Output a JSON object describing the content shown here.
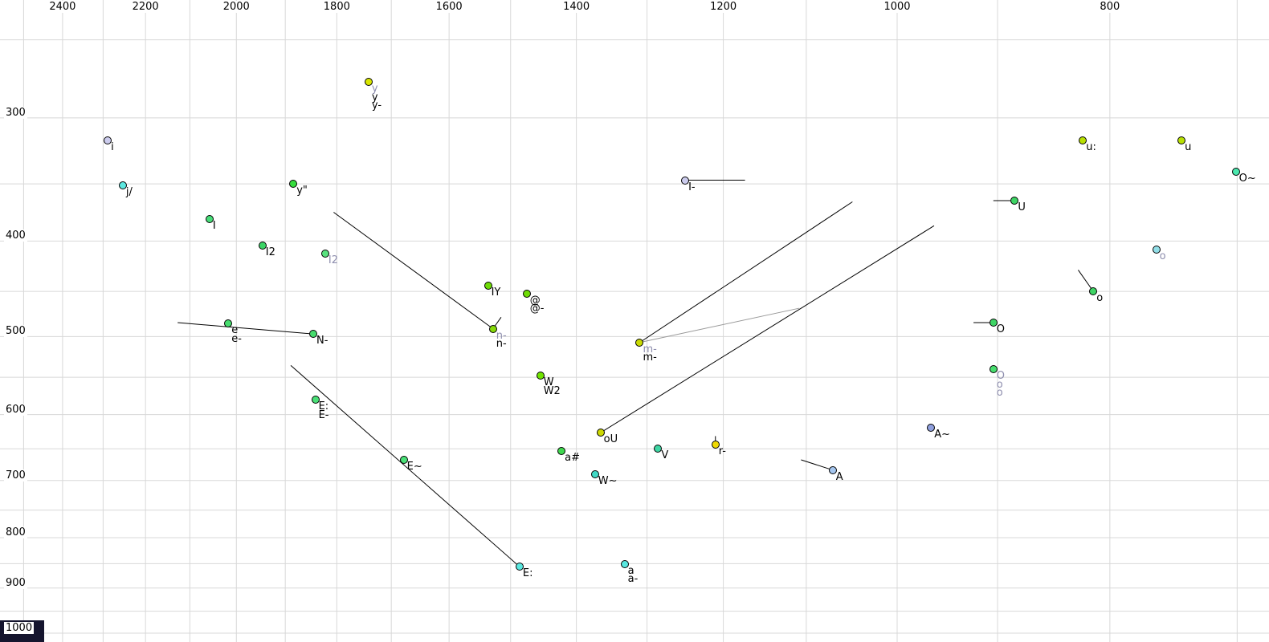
{
  "chart_data": {
    "type": "scatter",
    "title": "",
    "x_axis": {
      "tick_labels": [
        "2400",
        "2200",
        "2000",
        "1800",
        "1600",
        "1400",
        "1200",
        "1000",
        "800"
      ],
      "tick_values": [
        2400,
        2200,
        2000,
        1800,
        1600,
        1400,
        1200,
        1000,
        800
      ],
      "scale": "log",
      "direction": "reversed",
      "grid_step": 100,
      "grid_range": [
        700,
        2500
      ]
    },
    "y_axis": {
      "tick_labels": [
        "300",
        "400",
        "500",
        "600",
        "700",
        "800",
        "900",
        "1000"
      ],
      "tick_values": [
        300,
        400,
        500,
        600,
        700,
        800,
        900,
        1000
      ],
      "scale": "log",
      "direction": "down",
      "grid_step": 50,
      "grid_range": [
        250,
        1000
      ]
    },
    "grid_color": "#d8d8d8",
    "label_gray": "#8e8eae",
    "points": [
      {
        "id": "y",
        "f2": 1741,
        "f1": 276,
        "fill": "#d8e600",
        "labels": [
          {
            "text": "y",
            "color": "#8e8eae"
          },
          {
            "text": "y",
            "color": "#000000"
          },
          {
            "text": "y-",
            "color": "#000000"
          }
        ]
      },
      {
        "id": "i",
        "f2": 2289,
        "f1": 316,
        "fill": "#ccccee",
        "labels": [
          {
            "text": "i",
            "color": "#000000"
          }
        ]
      },
      {
        "id": "j-slash",
        "f2": 2253,
        "f1": 351,
        "fill": "#5ee8e0",
        "labels": [
          {
            "text": "j/",
            "color": "#000000"
          }
        ]
      },
      {
        "id": "I",
        "f2": 2057,
        "f1": 380,
        "fill": "#47dd78",
        "labels": [
          {
            "text": "I",
            "color": "#000000"
          }
        ]
      },
      {
        "id": "I2-a",
        "f2": 1946,
        "f1": 404,
        "fill": "#3bd465",
        "labels": [
          {
            "text": "I2",
            "color": "#000000"
          }
        ]
      },
      {
        "id": "I2-b",
        "f2": 1822,
        "f1": 412,
        "fill": "#58e27e",
        "labels": [
          {
            "text": "I2",
            "color": "#8e8eae"
          }
        ]
      },
      {
        "id": "y-umlaut",
        "f2": 1884,
        "f1": 350,
        "fill": "#36dd3d",
        "labels": [
          {
            "text": "y\"",
            "color": "#000000"
          }
        ]
      },
      {
        "id": "e",
        "f2": 2017,
        "f1": 485,
        "fill": "#47dd6e",
        "labels": [
          {
            "text": "e",
            "color": "#000000"
          },
          {
            "text": "e-",
            "color": "#000000"
          }
        ]
      },
      {
        "id": "N-",
        "f2": 1845,
        "f1": 497,
        "fill": "#47dd6e",
        "labels": [
          {
            "text": "N-",
            "color": "#000000"
          }
        ]
      },
      {
        "id": "IY",
        "f2": 1536,
        "f1": 444,
        "fill": "#6fdc06",
        "labels": [
          {
            "text": "IY",
            "color": "#000000"
          }
        ]
      },
      {
        "id": "at",
        "f2": 1475,
        "f1": 452,
        "fill": "#6fdc06",
        "labels": [
          {
            "text": "@",
            "color": "#000000"
          },
          {
            "text": "@-",
            "color": "#000000"
          }
        ]
      },
      {
        "id": "n-",
        "f2": 1528,
        "f1": 491,
        "fill": "#85d908",
        "labels": [
          {
            "text": "n-",
            "color": "#8e8eae"
          },
          {
            "text": "n-",
            "color": "#000000"
          }
        ]
      },
      {
        "id": "W",
        "f2": 1454,
        "f1": 548,
        "fill": "#70e400",
        "labels": [
          {
            "text": "W",
            "color": "#000000"
          },
          {
            "text": "W2",
            "color": "#000000"
          }
        ]
      },
      {
        "id": "E-colon",
        "f2": 1841,
        "f1": 580,
        "fill": "#4ae077",
        "labels": [
          {
            "text": "E:",
            "color": "#000000"
          },
          {
            "text": "E-",
            "color": "#000000"
          }
        ]
      },
      {
        "id": "E-nasal",
        "f2": 1678,
        "f1": 667,
        "fill": "#4ae077",
        "labels": [
          {
            "text": "E~",
            "color": "#000000"
          }
        ]
      },
      {
        "id": "E-colon-low",
        "f2": 1486,
        "f1": 856,
        "fill": "#5ae8e0",
        "labels": [
          {
            "text": "E:",
            "color": "#000000"
          }
        ]
      },
      {
        "id": "a",
        "f2": 1331,
        "f1": 851,
        "fill": "#5ae8e0",
        "labels": [
          {
            "text": "a",
            "color": "#000000"
          },
          {
            "text": "a-",
            "color": "#000000"
          }
        ]
      },
      {
        "id": "oU",
        "f2": 1365,
        "f1": 626,
        "fill": "#cdd802",
        "labels": [
          {
            "text": "oU",
            "color": "#000000"
          }
        ]
      },
      {
        "id": "a-hash",
        "f2": 1422,
        "f1": 653,
        "fill": "#3fd84f",
        "labels": [
          {
            "text": "a#",
            "color": "#000000"
          }
        ]
      },
      {
        "id": "W-nasal",
        "f2": 1373,
        "f1": 690,
        "fill": "#41d9c5",
        "labels": [
          {
            "text": "W~",
            "color": "#000000"
          }
        ]
      },
      {
        "id": "V",
        "f2": 1285,
        "f1": 650,
        "fill": "#3ed6a4",
        "labels": [
          {
            "text": "V",
            "color": "#000000"
          }
        ]
      },
      {
        "id": "r-",
        "f2": 1210,
        "f1": 644,
        "fill": "#efd902",
        "labels": [
          {
            "text": "r-",
            "color": "#000000"
          }
        ]
      },
      {
        "id": "m-",
        "f2": 1310,
        "f1": 507,
        "fill": "#c9da02",
        "labels": [
          {
            "text": "m-",
            "color": "#8e8eae"
          },
          {
            "text": "m-",
            "color": "#000000"
          }
        ]
      },
      {
        "id": "I-",
        "f2": 1249,
        "f1": 347,
        "fill": "#ccccee",
        "labels": [
          {
            "text": "I-",
            "color": "#000000"
          }
        ]
      },
      {
        "id": "A",
        "f2": 1070,
        "f1": 683,
        "fill": "#a5c6ef",
        "labels": [
          {
            "text": "A",
            "color": "#000000"
          }
        ]
      },
      {
        "id": "A-nasal",
        "f2": 965,
        "f1": 619,
        "fill": "#8f9fdd",
        "labels": [
          {
            "text": "A~",
            "color": "#000000"
          }
        ]
      },
      {
        "id": "u-colon",
        "f2": 823,
        "f1": 316,
        "fill": "#b8e002",
        "labels": [
          {
            "text": "u:",
            "color": "#000000"
          }
        ]
      },
      {
        "id": "u",
        "f2": 742,
        "f1": 316,
        "fill": "#b8e002",
        "labels": [
          {
            "text": "u",
            "color": "#000000"
          }
        ]
      },
      {
        "id": "O-nasal",
        "f2": 701,
        "f1": 340,
        "fill": "#4be8ae",
        "labels": [
          {
            "text": "O~",
            "color": "#000000"
          }
        ]
      },
      {
        "id": "U",
        "f2": 884,
        "f1": 364,
        "fill": "#3ed464",
        "labels": [
          {
            "text": "U",
            "color": "#000000"
          }
        ]
      },
      {
        "id": "o-gray",
        "f2": 762,
        "f1": 408,
        "fill": "#92dfe8",
        "labels": [
          {
            "text": "o",
            "color": "#8e8eae"
          }
        ]
      },
      {
        "id": "o",
        "f2": 814,
        "f1": 450,
        "fill": "#3ed464",
        "labels": [
          {
            "text": "o",
            "color": "#000000"
          }
        ]
      },
      {
        "id": "O",
        "f2": 904,
        "f1": 484,
        "fill": "#3ed464",
        "labels": [
          {
            "text": "O",
            "color": "#000000"
          }
        ]
      },
      {
        "id": "O-stack",
        "f2": 904,
        "f1": 540,
        "fill": "#47dd6e",
        "labels": [
          {
            "text": "O",
            "color": "#8e8eae"
          },
          {
            "text": "o",
            "color": "#8e8eae"
          },
          {
            "text": "o",
            "color": "#8e8eae"
          }
        ]
      }
    ],
    "lines": [
      {
        "f2a": 2127,
        "f1a": 484,
        "f2b": 1845,
        "f1b": 497,
        "color": "#000000"
      },
      {
        "f2a": 1806,
        "f1a": 374,
        "f2b": 1528,
        "f1b": 491,
        "color": "#000000"
      },
      {
        "f2a": 1889,
        "f1a": 535,
        "f2b": 1486,
        "f1b": 856,
        "color": "#000000"
      },
      {
        "f2a": 1310,
        "f1a": 507,
        "f2b": 1048,
        "f1b": 365,
        "color": "#000000"
      },
      {
        "f2a": 1310,
        "f1a": 507,
        "f2b": 1108,
        "f1b": 468,
        "color": "#999999"
      },
      {
        "f2a": 1365,
        "f1a": 626,
        "f2b": 962,
        "f1b": 386,
        "color": "#000000"
      },
      {
        "f2a": 1249,
        "f1a": 347,
        "f2b": 1173,
        "f1b": 347,
        "color": "#000000"
      },
      {
        "f2a": 1210,
        "f1a": 644,
        "f2b": 1210,
        "f1b": 631,
        "color": "#000000"
      },
      {
        "f2a": 1070,
        "f1a": 683,
        "f2b": 1106,
        "f1b": 667,
        "color": "#000000"
      },
      {
        "f2a": 884,
        "f1a": 364,
        "f2b": 904,
        "f1b": 364,
        "color": "#000000"
      },
      {
        "f2a": 814,
        "f1a": 450,
        "f2b": 827,
        "f1b": 428,
        "color": "#000000"
      },
      {
        "f2a": 904,
        "f1a": 484,
        "f2b": 923,
        "f1b": 484,
        "color": "#000000"
      },
      {
        "f2a": 1528,
        "f1a": 491,
        "f2b": 1515,
        "f1b": 478,
        "color": "#000000"
      }
    ]
  },
  "corner_swatch": {
    "color": "#15152e"
  }
}
